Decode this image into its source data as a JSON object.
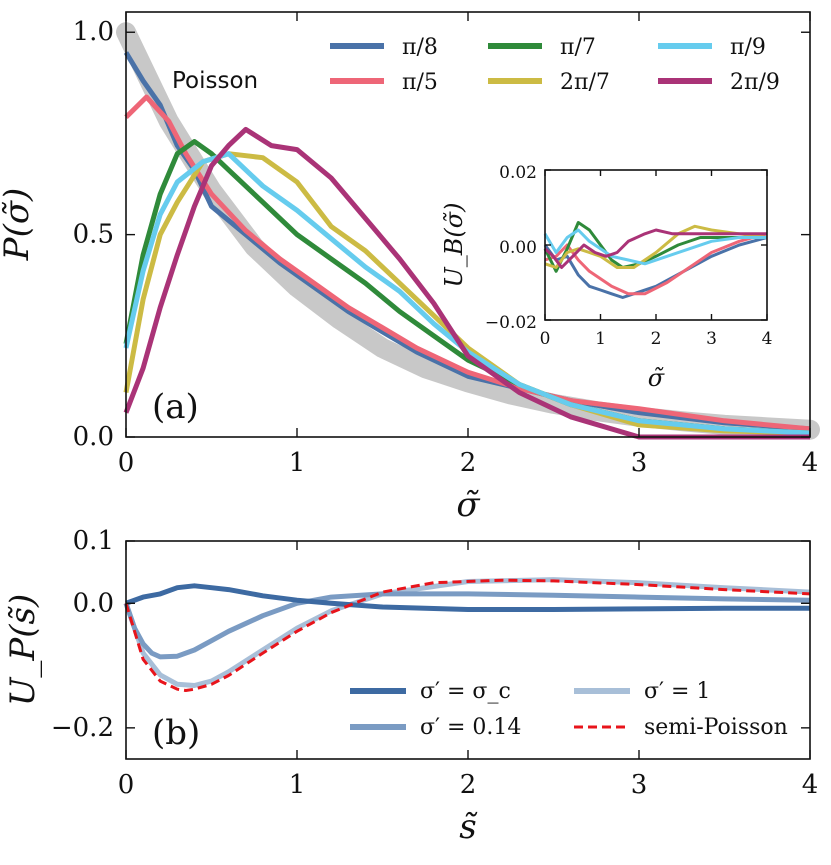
{
  "chart_data": [
    {
      "panel": "(a)",
      "type": "line",
      "xlabel": "σ̃",
      "ylabel": "P(σ̃)",
      "xlim": [
        0,
        4
      ],
      "ylim": [
        0,
        1.05
      ],
      "xticks": [
        "0",
        "1",
        "2",
        "3",
        "4"
      ],
      "yticks": [
        "0.0",
        "0.5",
        "1.0"
      ],
      "annotation": "Poisson",
      "legend_position": "top-right",
      "reference_band": {
        "name": "Poisson",
        "color": "#c8c8c8",
        "x": [
          0,
          0.25,
          0.5,
          0.75,
          1,
          1.25,
          1.5,
          1.75,
          2,
          2.25,
          2.5,
          2.75,
          3,
          3.25,
          3.5,
          3.75,
          4
        ],
        "y": [
          1.0,
          0.78,
          0.61,
          0.47,
          0.37,
          0.29,
          0.22,
          0.17,
          0.135,
          0.105,
          0.082,
          0.064,
          0.05,
          0.039,
          0.03,
          0.024,
          0.018
        ]
      },
      "series": [
        {
          "name": "π/8",
          "color": "#4a72a8",
          "x": [
            0,
            0.1,
            0.2,
            0.3,
            0.4,
            0.5,
            0.7,
            0.9,
            1.1,
            1.3,
            1.5,
            1.7,
            2.0,
            2.3,
            2.6,
            3.0,
            3.5,
            4.0
          ],
          "y": [
            0.95,
            0.88,
            0.82,
            0.72,
            0.66,
            0.57,
            0.5,
            0.43,
            0.37,
            0.31,
            0.26,
            0.21,
            0.15,
            0.12,
            0.09,
            0.06,
            0.035,
            0.02
          ]
        },
        {
          "name": "π/5",
          "color": "#ee6677",
          "x": [
            0,
            0.12,
            0.25,
            0.35,
            0.5,
            0.7,
            0.9,
            1.1,
            1.3,
            1.5,
            1.7,
            2.0,
            2.3,
            2.6,
            3.0,
            3.5,
            4.0
          ],
          "y": [
            0.79,
            0.84,
            0.78,
            0.7,
            0.6,
            0.51,
            0.44,
            0.38,
            0.32,
            0.27,
            0.22,
            0.16,
            0.12,
            0.09,
            0.07,
            0.04,
            0.02
          ]
        },
        {
          "name": "π/7",
          "color": "#2f8a3a",
          "x": [
            0,
            0.1,
            0.2,
            0.3,
            0.4,
            0.5,
            0.6,
            0.8,
            1.0,
            1.2,
            1.4,
            1.6,
            1.8,
            2.0,
            2.3,
            2.6,
            3.0,
            3.5,
            4.0
          ],
          "y": [
            0.23,
            0.45,
            0.6,
            0.7,
            0.73,
            0.7,
            0.66,
            0.58,
            0.5,
            0.44,
            0.38,
            0.31,
            0.25,
            0.19,
            0.13,
            0.08,
            0.04,
            0.02,
            0.01
          ]
        },
        {
          "name": "2π/7",
          "color": "#ccbb44",
          "x": [
            0,
            0.1,
            0.2,
            0.3,
            0.45,
            0.6,
            0.8,
            1.0,
            1.2,
            1.4,
            1.6,
            1.8,
            2.0,
            2.3,
            2.6,
            3.0,
            3.5,
            4.0
          ],
          "y": [
            0.11,
            0.34,
            0.5,
            0.58,
            0.68,
            0.7,
            0.69,
            0.63,
            0.52,
            0.46,
            0.38,
            0.3,
            0.22,
            0.13,
            0.08,
            0.03,
            0.015,
            0.01
          ]
        },
        {
          "name": "π/9",
          "color": "#66ccee",
          "x": [
            0,
            0.1,
            0.2,
            0.3,
            0.45,
            0.6,
            0.8,
            1.0,
            1.2,
            1.4,
            1.6,
            1.8,
            2.0,
            2.3,
            2.6,
            3.0,
            3.5,
            4.0
          ],
          "y": [
            0.22,
            0.41,
            0.55,
            0.63,
            0.68,
            0.7,
            0.62,
            0.56,
            0.49,
            0.42,
            0.36,
            0.28,
            0.21,
            0.13,
            0.08,
            0.04,
            0.02,
            0.01
          ]
        },
        {
          "name": "2π/9",
          "color": "#aa3377",
          "x": [
            0,
            0.1,
            0.2,
            0.3,
            0.4,
            0.5,
            0.6,
            0.7,
            0.85,
            1.0,
            1.2,
            1.4,
            1.6,
            1.8,
            2.0,
            2.3,
            2.6,
            3.0,
            3.5,
            4.0
          ],
          "y": [
            0.06,
            0.17,
            0.32,
            0.45,
            0.57,
            0.67,
            0.72,
            0.76,
            0.72,
            0.71,
            0.64,
            0.54,
            0.44,
            0.33,
            0.2,
            0.11,
            0.05,
            0.0,
            0.0,
            0.0
          ]
        }
      ]
    },
    {
      "panel": "inset",
      "type": "line",
      "xlabel": "σ̃",
      "ylabel": "U_B(σ̃)",
      "xlim": [
        0,
        4
      ],
      "ylim": [
        -0.02,
        0.02
      ],
      "xticks": [
        "0",
        "1",
        "2",
        "3",
        "4"
      ],
      "yticks": [
        "0.02",
        "0.00",
        "−0.02"
      ],
      "series": [
        {
          "name": "π/8",
          "color": "#4a72a8",
          "x": [
            0,
            0.2,
            0.4,
            0.6,
            0.8,
            1.0,
            1.2,
            1.4,
            1.6,
            2.0,
            2.5,
            3.0,
            3.5,
            4.0
          ],
          "y": [
            0.0,
            -0.004,
            -0.003,
            -0.008,
            -0.011,
            -0.012,
            -0.013,
            -0.014,
            -0.013,
            -0.011,
            -0.007,
            -0.003,
            0.0,
            0.002
          ]
        },
        {
          "name": "π/5",
          "color": "#ee6677",
          "x": [
            0,
            0.2,
            0.4,
            0.6,
            0.8,
            1.0,
            1.2,
            1.5,
            1.8,
            2.2,
            2.6,
            3.0,
            3.5,
            4.0
          ],
          "y": [
            -0.004,
            -0.003,
            0.0,
            -0.004,
            -0.007,
            -0.009,
            -0.011,
            -0.013,
            -0.013,
            -0.01,
            -0.006,
            -0.002,
            0.001,
            0.003
          ]
        },
        {
          "name": "π/7",
          "color": "#2f8a3a",
          "x": [
            0,
            0.2,
            0.4,
            0.6,
            0.8,
            1.0,
            1.2,
            1.4,
            1.7,
            2.0,
            2.4,
            2.8,
            3.2,
            3.6,
            4.0
          ],
          "y": [
            -0.001,
            -0.007,
            -0.001,
            0.006,
            0.004,
            0.0,
            -0.004,
            -0.006,
            -0.005,
            -0.003,
            0.0,
            0.002,
            0.002,
            0.002,
            0.002
          ]
        },
        {
          "name": "2π/7",
          "color": "#ccbb44",
          "x": [
            0,
            0.2,
            0.4,
            0.6,
            0.8,
            1.0,
            1.3,
            1.6,
            2.0,
            2.4,
            2.7,
            3.0,
            3.5,
            4.0
          ],
          "y": [
            -0.005,
            -0.006,
            -0.002,
            -0.001,
            -0.002,
            -0.003,
            -0.006,
            -0.006,
            -0.002,
            0.003,
            0.005,
            0.004,
            0.003,
            0.002
          ]
        },
        {
          "name": "π/9",
          "color": "#66ccee",
          "x": [
            0,
            0.2,
            0.4,
            0.6,
            0.8,
            1.0,
            1.2,
            1.5,
            1.8,
            2.2,
            2.6,
            3.0,
            3.5,
            4.0
          ],
          "y": [
            0.003,
            -0.002,
            0.002,
            0.004,
            0.001,
            -0.001,
            -0.003,
            -0.004,
            -0.005,
            -0.003,
            -0.001,
            0.001,
            0.002,
            0.002
          ]
        },
        {
          "name": "2π/9",
          "color": "#aa3377",
          "x": [
            0,
            0.15,
            0.3,
            0.5,
            0.7,
            0.9,
            1.1,
            1.3,
            1.5,
            1.8,
            2.0,
            2.3,
            2.6,
            3.0,
            3.5,
            4.0
          ],
          "y": [
            -0.001,
            -0.003,
            -0.006,
            -0.003,
            0.0,
            -0.002,
            -0.003,
            -0.002,
            0.001,
            0.003,
            0.004,
            0.003,
            0.003,
            0.003,
            0.003,
            0.003
          ]
        }
      ]
    },
    {
      "panel": "(b)",
      "type": "line",
      "xlabel": "s̃",
      "ylabel": "U_P(s̃)",
      "xlim": [
        0,
        4
      ],
      "ylim": [
        -0.25,
        0.1
      ],
      "xticks": [
        "0",
        "1",
        "2",
        "3",
        "4"
      ],
      "yticks": [
        "0.1",
        "0.0",
        "−0.2"
      ],
      "legend_position": "bottom-right",
      "series": [
        {
          "name": "σ′ = σ_c",
          "color": "#3d6aa2",
          "dash": false,
          "x": [
            0,
            0.1,
            0.2,
            0.3,
            0.4,
            0.5,
            0.6,
            0.8,
            1.0,
            1.2,
            1.5,
            2.0,
            2.5,
            3.0,
            3.5,
            4.0
          ],
          "y": [
            0.0,
            0.01,
            0.015,
            0.025,
            0.028,
            0.025,
            0.022,
            0.012,
            0.005,
            0.0,
            -0.006,
            -0.01,
            -0.01,
            -0.009,
            -0.008,
            -0.008
          ]
        },
        {
          "name": "σ′ = 0.14",
          "color": "#7a9bc3",
          "dash": false,
          "x": [
            0,
            0.05,
            0.1,
            0.15,
            0.2,
            0.3,
            0.4,
            0.5,
            0.6,
            0.8,
            1.0,
            1.2,
            1.5,
            2.0,
            2.5,
            3.0,
            3.5,
            4.0
          ],
          "y": [
            0.0,
            -0.04,
            -0.065,
            -0.08,
            -0.086,
            -0.085,
            -0.075,
            -0.06,
            -0.045,
            -0.02,
            0.0,
            0.01,
            0.015,
            0.015,
            0.013,
            0.01,
            0.007,
            0.005
          ]
        },
        {
          "name": "σ′ = 1",
          "color": "#a8bfd8",
          "dash": false,
          "x": [
            0,
            0.1,
            0.2,
            0.3,
            0.4,
            0.5,
            0.6,
            0.8,
            1.0,
            1.2,
            1.5,
            2.0,
            2.5,
            3.0,
            3.5,
            4.0
          ],
          "y": [
            0.0,
            -0.08,
            -0.115,
            -0.13,
            -0.132,
            -0.125,
            -0.11,
            -0.075,
            -0.04,
            -0.012,
            0.015,
            0.035,
            0.038,
            0.033,
            0.025,
            0.018
          ]
        },
        {
          "name": "semi-Poisson",
          "color": "#e8141b",
          "dash": true,
          "x": [
            0,
            0.1,
            0.2,
            0.3,
            0.35,
            0.4,
            0.5,
            0.6,
            0.8,
            1.0,
            1.2,
            1.5,
            1.8,
            2.2,
            2.5,
            3.0,
            3.5,
            4.0
          ],
          "y": [
            0.0,
            -0.09,
            -0.125,
            -0.138,
            -0.14,
            -0.138,
            -0.13,
            -0.116,
            -0.08,
            -0.045,
            -0.015,
            0.018,
            0.033,
            0.037,
            0.036,
            0.03,
            0.022,
            0.015
          ]
        }
      ]
    }
  ]
}
